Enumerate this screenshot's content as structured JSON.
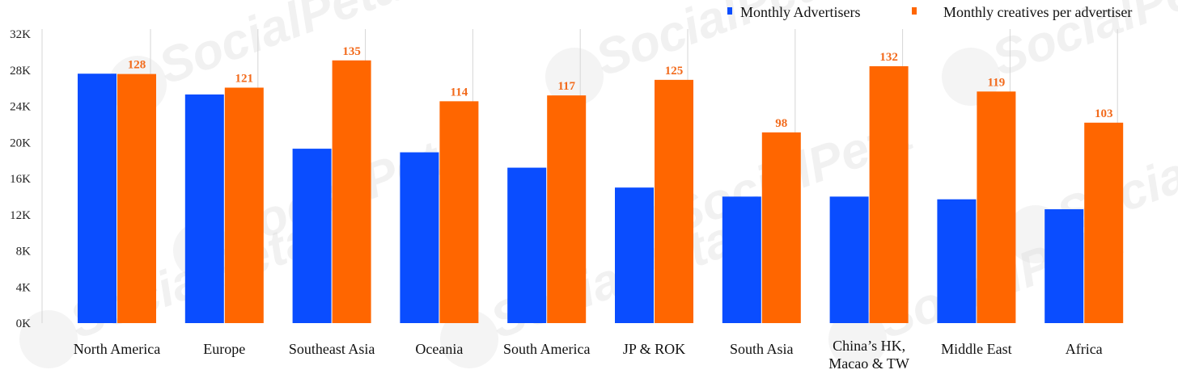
{
  "watermark": "SocialPeta",
  "chart_data": {
    "type": "bar",
    "title": "",
    "xlabel": "",
    "ylabel": "",
    "categories": [
      "North America",
      "Europe",
      "Southeast Asia",
      "Oceania",
      "South America",
      "JP & ROK",
      "South Asia",
      "China’s HK, Macao & TW",
      "Middle East",
      "Africa"
    ],
    "category_lines": [
      [
        "North America"
      ],
      [
        "Europe"
      ],
      [
        "Southeast Asia"
      ],
      [
        "Oceania"
      ],
      [
        "South America"
      ],
      [
        "JP & ROK"
      ],
      [
        "South Asia"
      ],
      [
        "China’s HK,",
        "Macao & TW"
      ],
      [
        "Middle East"
      ],
      [
        "Africa"
      ]
    ],
    "ylim": [
      0,
      32000
    ],
    "yticks": [
      0,
      4000,
      8000,
      12000,
      16000,
      20000,
      24000,
      28000,
      32000
    ],
    "ytick_labels": [
      "0K",
      "4K",
      "8K",
      "12K",
      "16K",
      "20K",
      "24K",
      "28K",
      "32K"
    ],
    "legend_position": "top-right",
    "grid": "vertical separators between categories",
    "series": [
      {
        "name": "Monthly Advertisers",
        "color": "#0a4dff",
        "values": [
          27600,
          25300,
          19300,
          18900,
          17200,
          15000,
          14000,
          14000,
          13700,
          12600
        ]
      },
      {
        "name": "Monthly creatives per advertiser",
        "color": "#ff6600",
        "values": [
          128,
          121,
          135,
          114,
          117,
          125,
          98,
          132,
          119,
          103
        ],
        "data_labels": [
          "128",
          "121",
          "135",
          "114",
          "117",
          "125",
          "98",
          "132",
          "119",
          "103"
        ],
        "label_color": "#f26a1b"
      }
    ]
  }
}
